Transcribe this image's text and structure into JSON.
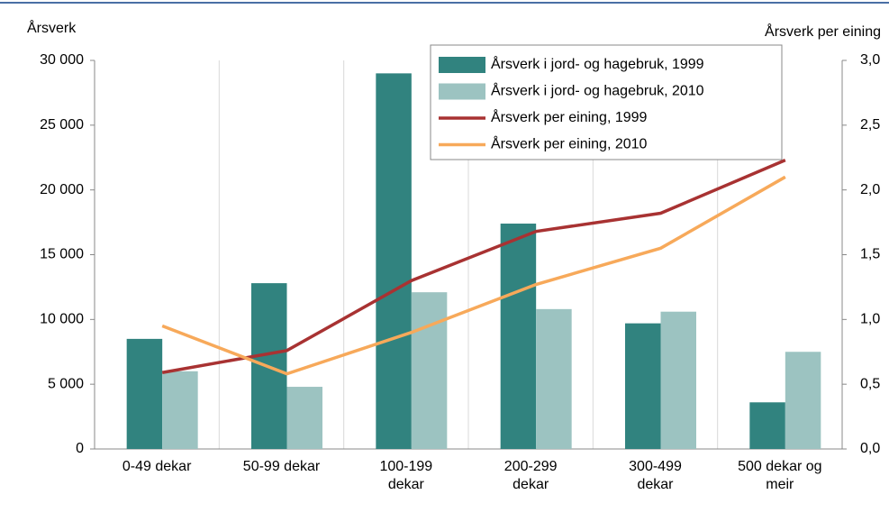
{
  "chart_data": {
    "type": "bar_line",
    "y_label": "Årsverk",
    "y2_label": "Årsverk per eining",
    "categories": [
      "0-49 dekar",
      "50-99 dekar",
      "100-199 dekar",
      "200-299 dekar",
      "300-499 dekar",
      "500 dekar og meir"
    ],
    "series": [
      {
        "name": "Årsverk i jord- og hagebruk, 1999",
        "type": "bar",
        "color": "#31837f",
        "values": [
          8500,
          12800,
          29000,
          17400,
          9700,
          3600
        ]
      },
      {
        "name": "Årsverk i jord- og hagebruk, 2010",
        "type": "bar",
        "color": "#9cc3c1",
        "values": [
          6000,
          4800,
          12100,
          10800,
          10600,
          7500
        ]
      },
      {
        "name": "Årsverk per eining, 1999",
        "type": "line",
        "axis": "y2",
        "color": "#a83232",
        "values": [
          0.59,
          0.76,
          1.3,
          1.68,
          1.82,
          2.23
        ]
      },
      {
        "name": "Årsverk per eining, 2010",
        "type": "line",
        "axis": "y2",
        "color": "#f7a95a",
        "values": [
          0.95,
          0.58,
          0.9,
          1.27,
          1.55,
          2.1
        ]
      }
    ],
    "ylim": [
      0,
      30000
    ],
    "yticks": [
      0,
      {
        "value": 5000,
        "label": "5 000"
      },
      {
        "value": 10000,
        "label": "10 000"
      },
      {
        "value": 15000,
        "label": "15 000"
      },
      {
        "value": 20000,
        "label": "20 000"
      },
      {
        "value": 25000,
        "label": "25 000"
      },
      {
        "value": 30000,
        "label": "30 000"
      }
    ],
    "y2lim": [
      0,
      3
    ],
    "y2ticks": [
      {
        "value": 0,
        "label": "0,0"
      },
      {
        "value": 0.5,
        "label": "0,5"
      },
      {
        "value": 1,
        "label": "1,0"
      },
      {
        "value": 1.5,
        "label": "1,5"
      },
      {
        "value": 2,
        "label": "2,0"
      },
      {
        "value": 2.5,
        "label": "2,5"
      },
      {
        "value": 3,
        "label": "3,0"
      }
    ],
    "legend": "top-right"
  }
}
